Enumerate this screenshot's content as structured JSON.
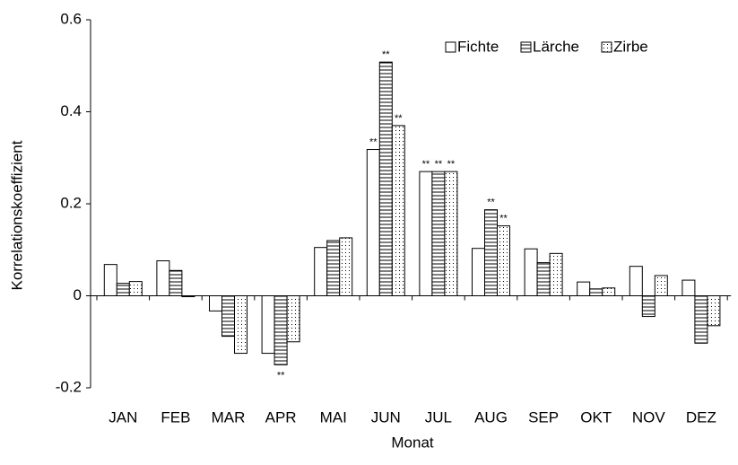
{
  "chart_data": {
    "type": "bar",
    "xlabel": "Monat",
    "ylabel": "Korrelationskoeffizient",
    "categories": [
      "JAN",
      "FEB",
      "MAR",
      "APR",
      "MAI",
      "JUN",
      "JUL",
      "AUG",
      "SEP",
      "OKT",
      "NOV",
      "DEZ"
    ],
    "series": [
      {
        "name": "Fichte",
        "color": "#000000",
        "pattern": "none",
        "values": [
          0.068,
          0.076,
          -0.033,
          -0.125,
          0.105,
          0.318,
          0.27,
          0.103,
          0.102,
          0.03,
          0.064,
          0.034
        ],
        "labels": [
          null,
          null,
          null,
          null,
          null,
          "**",
          "**",
          null,
          null,
          null,
          null,
          null
        ]
      },
      {
        "name": "Lärche",
        "color": "#000000",
        "pattern": "horizontal",
        "values": [
          0.027,
          0.055,
          -0.088,
          -0.15,
          0.12,
          0.508,
          0.27,
          0.187,
          0.072,
          0.015,
          -0.045,
          -0.103
        ],
        "labels": [
          null,
          null,
          null,
          "**",
          null,
          "**",
          "**",
          "**",
          null,
          null,
          null,
          null
        ]
      },
      {
        "name": "Zirbe",
        "color": "#000000",
        "pattern": "dots",
        "values": [
          0.031,
          -0.002,
          -0.125,
          -0.1,
          0.126,
          0.37,
          0.27,
          0.152,
          0.092,
          0.017,
          0.044,
          -0.065
        ],
        "labels": [
          null,
          null,
          null,
          null,
          null,
          "**",
          "**",
          "**",
          null,
          null,
          null,
          null
        ]
      }
    ],
    "ylim": [
      -0.2,
      0.6
    ],
    "yticks": [
      {
        "value": -0.2,
        "label": "-0.2"
      },
      0,
      0.2,
      0.4,
      0.6
    ],
    "legend": "top-right",
    "grid": false
  }
}
